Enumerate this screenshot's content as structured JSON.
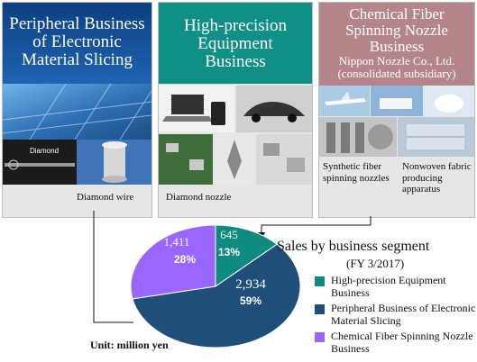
{
  "panels": [
    {
      "title_line1": "Peripheral Business",
      "title_line2": "of Electronic",
      "title_line3": "Material Slicing",
      "caption": "Diamond wire",
      "photo_label": "Diamond"
    },
    {
      "title_line1": "High-precision",
      "title_line2": "Equipment",
      "title_line3": "Business",
      "caption": "Diamond nozzle"
    },
    {
      "title_line1": "Chemical Fiber",
      "title_line2": "Spinning Nozzle",
      "title_line3": "Business",
      "subtitle_line1": "Nippon Nozzle Co., Ltd.",
      "subtitle_line2": "(consolidated subsidiary)",
      "caption_left": "Synthetic fiber spinning nozzles",
      "caption_right": "Nonwoven fabric producing apparatus"
    }
  ],
  "colors": {
    "teal": "#0e8a7e",
    "navy": "#1f4e79",
    "purple": "#9966ff",
    "panel_blue": "#0a3d7a",
    "panel_teal": "#0f8f86",
    "panel_rose": "#b5858a"
  },
  "chart_data": {
    "type": "pie",
    "title": "Sales by business segment",
    "subtitle": "(FY 3/2017)",
    "unit": "Unit: million yen",
    "slices": [
      {
        "label": "High-precision Equipment Business",
        "value": 645,
        "percent": "13%",
        "value_text": "645",
        "color": "#0e8a7e"
      },
      {
        "label": "Peripheral Business of Electronic Material Slicing",
        "value": 2934,
        "percent": "59%",
        "value_text": "2,934",
        "color": "#1f4e79"
      },
      {
        "label": "Chemical Fiber Spinning Nozzle Business",
        "value": 1411,
        "percent": "28%",
        "value_text": "1,411",
        "color": "#9966ff"
      }
    ],
    "legend_position": "right"
  }
}
